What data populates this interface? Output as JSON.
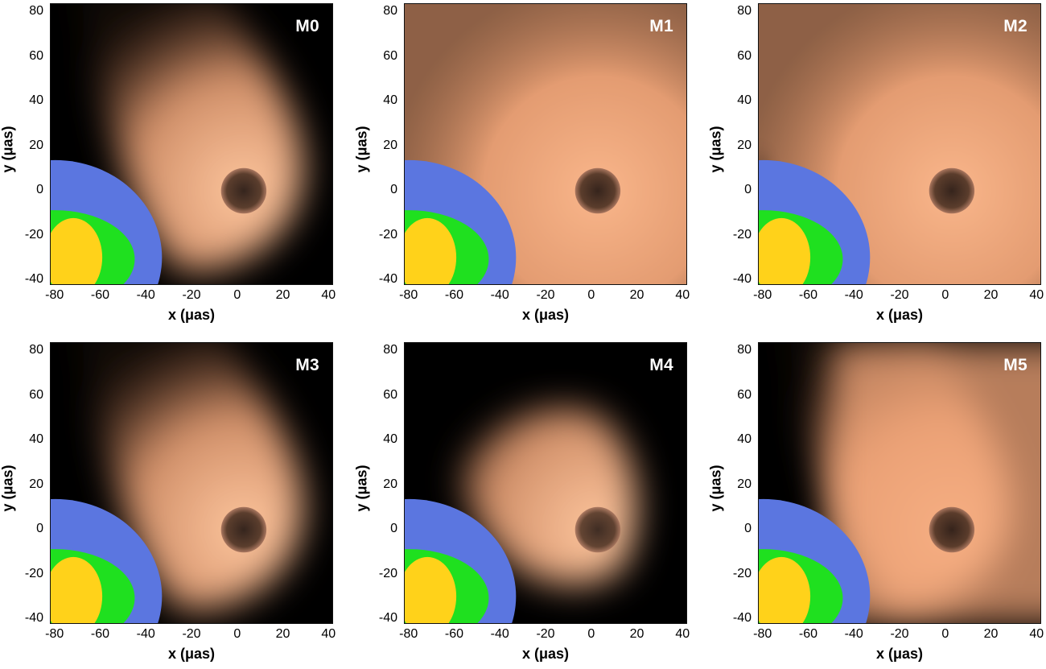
{
  "panels": [
    {
      "label": "M0",
      "variant": "m0"
    },
    {
      "label": "M1",
      "variant": "m1"
    },
    {
      "label": "M2",
      "variant": "m2"
    },
    {
      "label": "M3",
      "variant": "m0"
    },
    {
      "label": "M4",
      "variant": "m4"
    },
    {
      "label": "M5",
      "variant": "m5"
    }
  ],
  "axes": {
    "xlabel": "x (μas)",
    "ylabel": "y (μas)",
    "xticks": [
      "-80",
      "-60",
      "-40",
      "-20",
      "0",
      "20",
      "40"
    ],
    "yticks": [
      "80",
      "60",
      "40",
      "20",
      "0",
      "-20",
      "-40"
    ],
    "xlim": [
      -82,
      42
    ],
    "ylim": [
      -42,
      84
    ]
  },
  "colors": {
    "background": "#000000",
    "emission": "#f4a77a",
    "beam_outer": "#5b76e0",
    "beam_middle": "#1fe01f",
    "beam_inner": "#ffd21a"
  }
}
